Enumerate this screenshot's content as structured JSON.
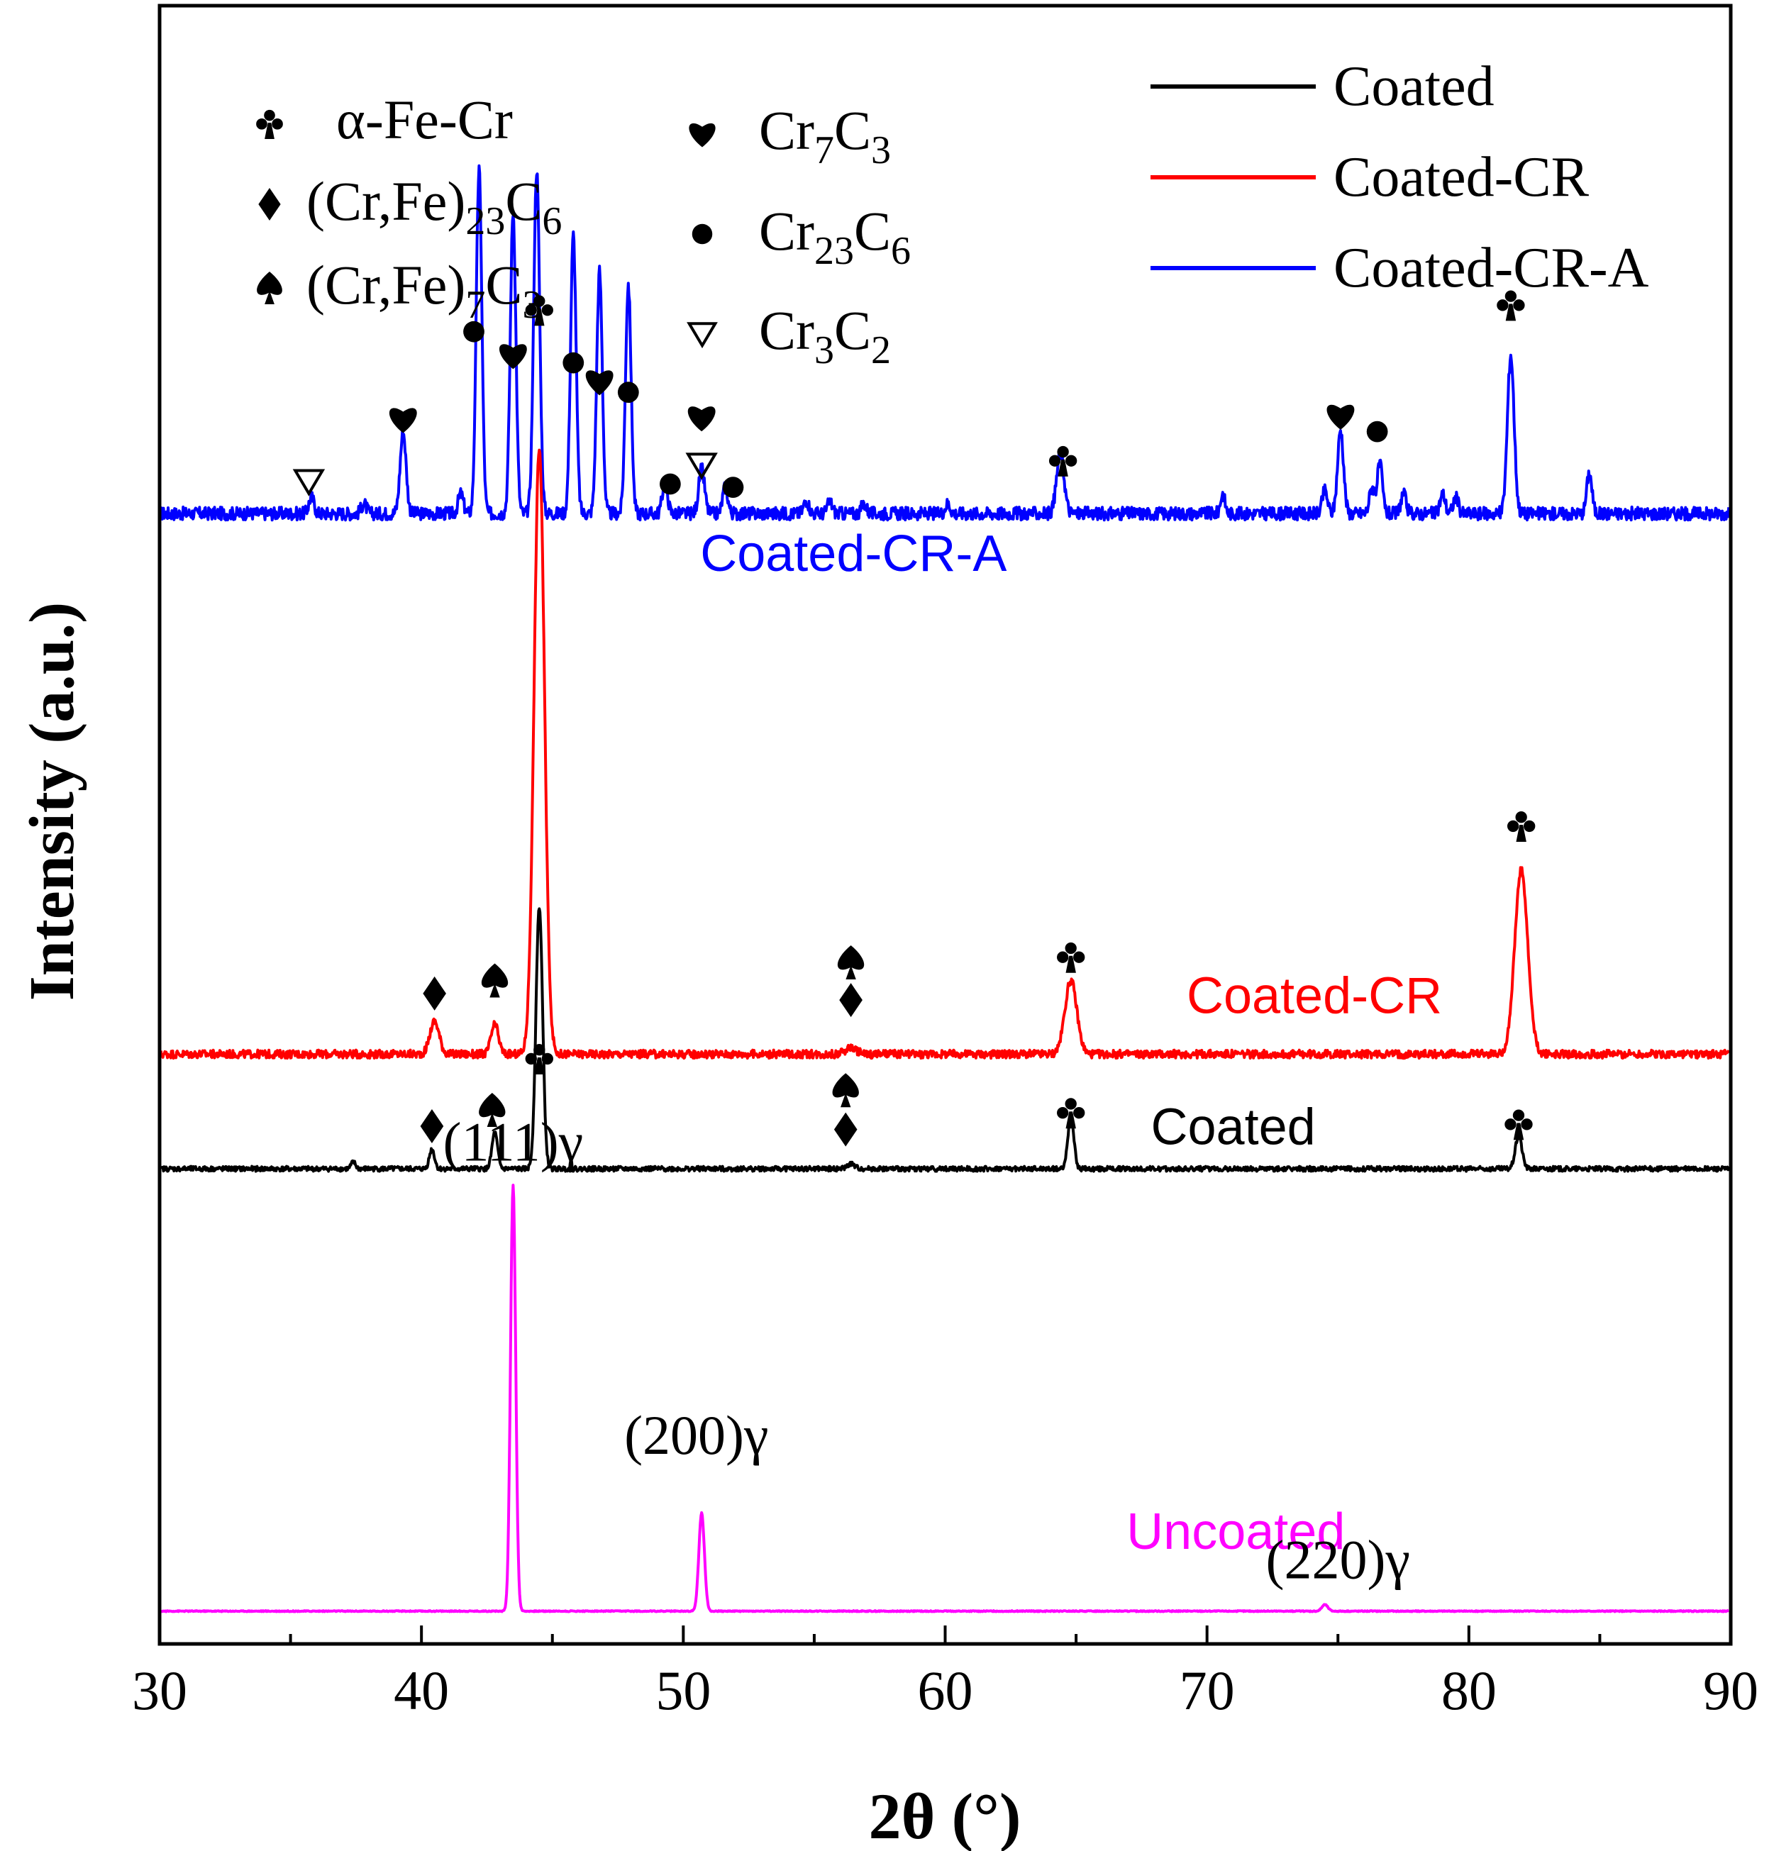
{
  "chart_data": {
    "type": "line",
    "title": "",
    "xlabel": "2θ (°)",
    "ylabel": "Intensity (a.u.)",
    "xlim": [
      30,
      90
    ],
    "xticks": [
      30,
      40,
      50,
      60,
      70,
      80,
      90
    ],
    "xtick_labels": [
      "30",
      "40",
      "50",
      "60",
      "70",
      "80",
      "90"
    ],
    "legend_position": "top-right",
    "colors": {
      "coated": "#000000",
      "coated_cr": "#ff0000",
      "coated_cr_a": "#0000ff",
      "uncoated": "#ff00ff",
      "axis": "#000000"
    },
    "series": [
      {
        "key": "coated_cr_a",
        "name": "Coated-CR-A",
        "in_legend": true,
        "color": "#0000ff",
        "baseline": 0.69,
        "noise": 0.004,
        "peaks": [
          {
            "x": 35.8,
            "h": 0.01,
            "w": 0.14
          },
          {
            "x": 37.8,
            "h": 0.006,
            "w": 0.14
          },
          {
            "x": 39.3,
            "h": 0.05,
            "w": 0.16
          },
          {
            "x": 41.5,
            "h": 0.012,
            "w": 0.14
          },
          {
            "x": 42.2,
            "h": 0.21,
            "w": 0.15
          },
          {
            "x": 43.5,
            "h": 0.184,
            "w": 0.15
          },
          {
            "x": 44.4,
            "h": 0.21,
            "w": 0.16
          },
          {
            "x": 45.8,
            "h": 0.17,
            "w": 0.15
          },
          {
            "x": 46.8,
            "h": 0.148,
            "w": 0.15
          },
          {
            "x": 47.9,
            "h": 0.14,
            "w": 0.15
          },
          {
            "x": 49.3,
            "h": 0.02,
            "w": 0.14
          },
          {
            "x": 50.7,
            "h": 0.027,
            "w": 0.16
          },
          {
            "x": 51.6,
            "h": 0.016,
            "w": 0.14
          },
          {
            "x": 54.7,
            "h": 0.008,
            "w": 0.14
          },
          {
            "x": 55.6,
            "h": 0.007,
            "w": 0.14
          },
          {
            "x": 56.9,
            "h": 0.006,
            "w": 0.14
          },
          {
            "x": 60.1,
            "h": 0.006,
            "w": 0.14
          },
          {
            "x": 64.4,
            "h": 0.037,
            "w": 0.2
          },
          {
            "x": 70.6,
            "h": 0.012,
            "w": 0.12
          },
          {
            "x": 74.5,
            "h": 0.014,
            "w": 0.14
          },
          {
            "x": 75.1,
            "h": 0.051,
            "w": 0.16
          },
          {
            "x": 76.3,
            "h": 0.016,
            "w": 0.14
          },
          {
            "x": 76.6,
            "h": 0.03,
            "w": 0.14
          },
          {
            "x": 77.5,
            "h": 0.012,
            "w": 0.14
          },
          {
            "x": 79.0,
            "h": 0.012,
            "w": 0.14
          },
          {
            "x": 79.5,
            "h": 0.01,
            "w": 0.14
          },
          {
            "x": 81.6,
            "h": 0.097,
            "w": 0.18
          },
          {
            "x": 84.6,
            "h": 0.025,
            "w": 0.14
          }
        ]
      },
      {
        "key": "coated_cr",
        "name": "Coated-CR",
        "in_legend": true,
        "color": "#ff0000",
        "baseline": 0.36,
        "noise": 0.0025,
        "peaks": [
          {
            "x": 40.5,
            "h": 0.02,
            "w": 0.25
          },
          {
            "x": 42.8,
            "h": 0.018,
            "w": 0.2
          },
          {
            "x": 44.5,
            "h": 0.37,
            "w": 0.28
          },
          {
            "x": 56.4,
            "h": 0.004,
            "w": 0.3
          },
          {
            "x": 64.8,
            "h": 0.045,
            "w": 0.32
          },
          {
            "x": 82.0,
            "h": 0.112,
            "w": 0.35
          }
        ]
      },
      {
        "key": "coated",
        "name": "Coated",
        "in_legend": true,
        "color": "#000000",
        "baseline": 0.29,
        "noise": 0.0015,
        "peaks": [
          {
            "x": 37.4,
            "h": 0.004,
            "w": 0.12
          },
          {
            "x": 40.4,
            "h": 0.012,
            "w": 0.14
          },
          {
            "x": 42.8,
            "h": 0.022,
            "w": 0.15
          },
          {
            "x": 44.5,
            "h": 0.16,
            "w": 0.18
          },
          {
            "x": 56.4,
            "h": 0.003,
            "w": 0.2
          },
          {
            "x": 64.8,
            "h": 0.032,
            "w": 0.16
          },
          {
            "x": 81.9,
            "h": 0.02,
            "w": 0.18
          }
        ]
      },
      {
        "key": "uncoated",
        "name": "Uncoated",
        "in_legend": false,
        "color": "#ff00ff",
        "baseline": 0.02,
        "noise": 0.0003,
        "peaks": [
          {
            "x": 43.5,
            "h": 0.26,
            "w": 0.14
          },
          {
            "x": 50.7,
            "h": 0.06,
            "w": 0.15
          },
          {
            "x": 74.5,
            "h": 0.004,
            "w": 0.16
          }
        ]
      }
    ],
    "curve_labels": [
      {
        "series": "coated_cr_a",
        "text": "Coated-CR-A",
        "x": 56.5,
        "y": 0.655
      },
      {
        "series": "coated_cr",
        "text": "Coated-CR",
        "x": 74.1,
        "y": 0.385
      },
      {
        "series": "coated",
        "text": "Coated",
        "x": 71.0,
        "y": 0.305
      },
      {
        "series": "uncoated",
        "text": "Uncoated",
        "x": 71.1,
        "y": 0.058
      }
    ],
    "phase_legend": [
      {
        "symbol": "club",
        "label": "α-Fe-Cr",
        "sub": []
      },
      {
        "symbol": "diamond",
        "label": "(Cr,Fe)23C6",
        "sub": [
          "(Cr,Fe)",
          "23",
          "C",
          "6"
        ]
      },
      {
        "symbol": "spade",
        "label": "(Cr,Fe)7C3",
        "sub": [
          "(Cr,Fe)",
          "7",
          "C",
          "3"
        ]
      },
      {
        "symbol": "heart",
        "label": "Cr7C3",
        "sub": [
          "Cr",
          "7",
          "C",
          "3"
        ]
      },
      {
        "symbol": "dot",
        "label": "Cr23C6",
        "sub": [
          "Cr",
          "23",
          "C",
          "6"
        ]
      },
      {
        "symbol": "triangle",
        "label": "Cr3C2",
        "sub": [
          "Cr",
          "3",
          "C",
          "2"
        ]
      }
    ],
    "peak_markers": [
      {
        "x": 35.7,
        "y": 0.71,
        "symbol": "triangle"
      },
      {
        "x": 39.3,
        "y": 0.748,
        "symbol": "heart"
      },
      {
        "x": 42.0,
        "y": 0.801,
        "symbol": "dot"
      },
      {
        "x": 43.5,
        "y": 0.787,
        "symbol": "heart"
      },
      {
        "x": 44.5,
        "y": 0.815,
        "symbol": "club"
      },
      {
        "x": 45.8,
        "y": 0.782,
        "symbol": "dot"
      },
      {
        "x": 46.8,
        "y": 0.771,
        "symbol": "heart"
      },
      {
        "x": 47.9,
        "y": 0.764,
        "symbol": "dot"
      },
      {
        "x": 49.5,
        "y": 0.708,
        "symbol": "dot"
      },
      {
        "x": 50.7,
        "y": 0.749,
        "symbol": "heart"
      },
      {
        "x": 50.7,
        "y": 0.72,
        "symbol": "triangle"
      },
      {
        "x": 51.9,
        "y": 0.706,
        "symbol": "dot"
      },
      {
        "x": 64.5,
        "y": 0.723,
        "symbol": "club"
      },
      {
        "x": 75.1,
        "y": 0.75,
        "symbol": "heart"
      },
      {
        "x": 76.5,
        "y": 0.74,
        "symbol": "dot"
      },
      {
        "x": 81.6,
        "y": 0.818,
        "symbol": "club"
      },
      {
        "x": 40.5,
        "y": 0.397,
        "symbol": "diamond"
      },
      {
        "x": 42.8,
        "y": 0.405,
        "symbol": "spade"
      },
      {
        "x": 56.4,
        "y": 0.416,
        "symbol": "spade"
      },
      {
        "x": 56.4,
        "y": 0.393,
        "symbol": "diamond"
      },
      {
        "x": 64.8,
        "y": 0.42,
        "symbol": "club"
      },
      {
        "x": 82.0,
        "y": 0.5,
        "symbol": "club"
      },
      {
        "x": 40.4,
        "y": 0.316,
        "symbol": "diamond"
      },
      {
        "x": 42.7,
        "y": 0.326,
        "symbol": "spade"
      },
      {
        "x": 44.5,
        "y": 0.358,
        "symbol": "club"
      },
      {
        "x": 56.2,
        "y": 0.338,
        "symbol": "spade"
      },
      {
        "x": 56.2,
        "y": 0.314,
        "symbol": "diamond"
      },
      {
        "x": 64.8,
        "y": 0.325,
        "symbol": "club"
      },
      {
        "x": 81.9,
        "y": 0.318,
        "symbol": "club"
      }
    ],
    "reflection_labels": [
      {
        "text": "(111)γ",
        "x": 43.5,
        "y": 0.295
      },
      {
        "text": "(200)γ",
        "x": 50.5,
        "y": 0.116
      },
      {
        "text": "(220)γ",
        "x": 75.0,
        "y": 0.04
      }
    ]
  }
}
